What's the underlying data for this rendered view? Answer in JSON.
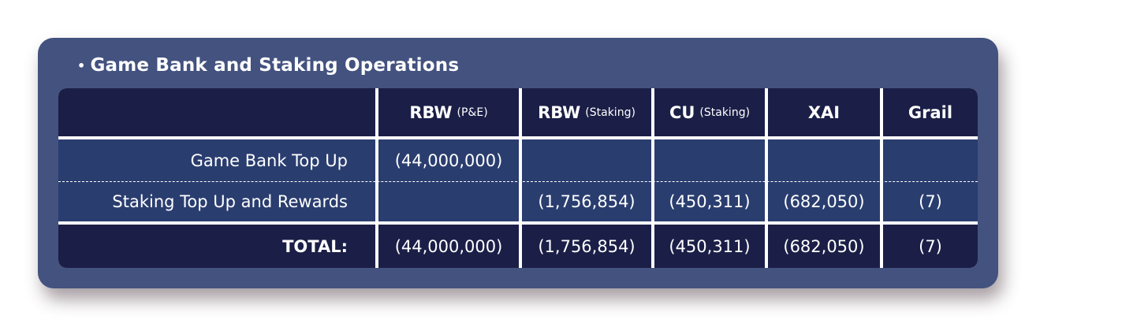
{
  "section": {
    "bullet": "•",
    "title": "Game Bank and Staking Operations"
  },
  "table": {
    "columns": [
      {
        "main": "",
        "sub": ""
      },
      {
        "main": "RBW",
        "sub": "(P&E)"
      },
      {
        "main": "RBW",
        "sub": "(Staking)"
      },
      {
        "main": "CU",
        "sub": "(Staking)"
      },
      {
        "main": "XAI",
        "sub": ""
      },
      {
        "main": "Grail",
        "sub": ""
      }
    ],
    "rows": [
      {
        "label": "Game Bank Top Up",
        "values": [
          "(44,000,000)",
          "",
          "",
          "",
          ""
        ]
      },
      {
        "label": "Staking Top Up and Rewards",
        "values": [
          "",
          "(1,756,854)",
          "(450,311)",
          "(682,050)",
          "(7)"
        ]
      }
    ],
    "total": {
      "label": "TOTAL:",
      "values": [
        "(44,000,000)",
        "(1,756,854)",
        "(450,311)",
        "(682,050)",
        "(7)"
      ]
    }
  }
}
